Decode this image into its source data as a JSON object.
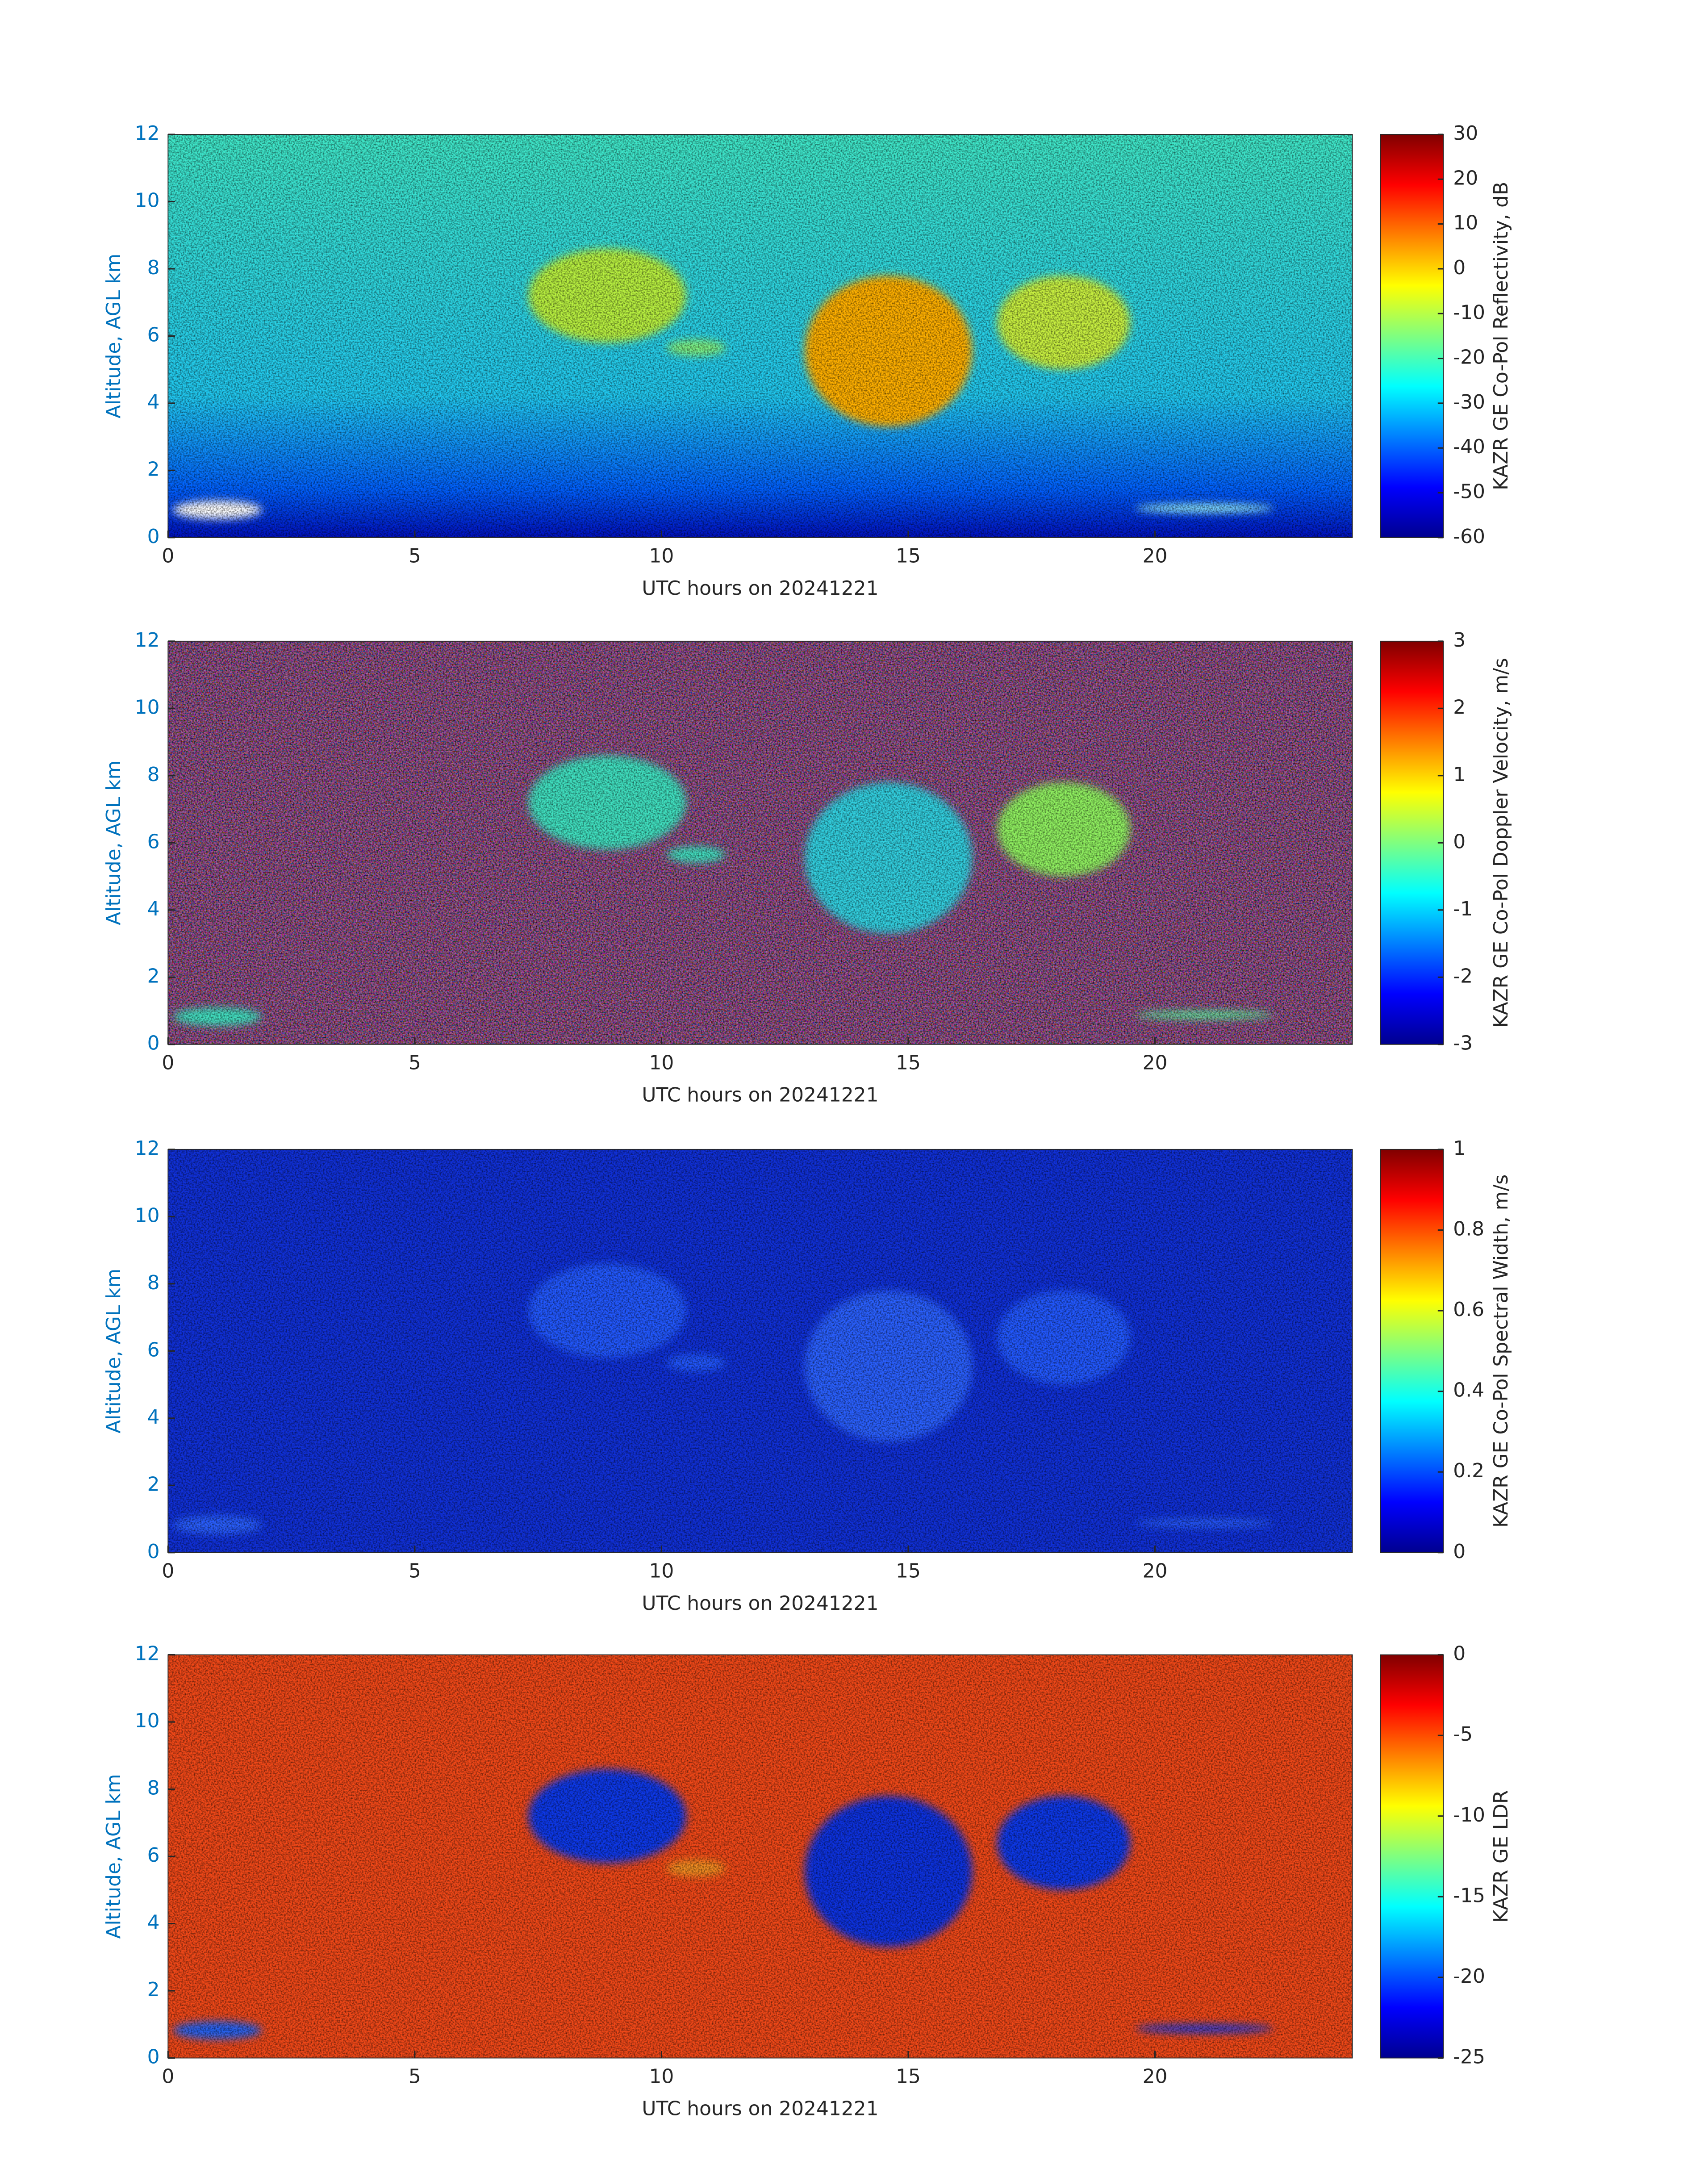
{
  "chart_data": [
    {
      "type": "heatmap",
      "colormap": "jet",
      "xlabel": "UTC hours on 20241221",
      "ylabel": "Altitude, AGL km",
      "xlim": [
        0,
        24
      ],
      "xticks": [
        0,
        5,
        10,
        15,
        20
      ],
      "ylim": [
        0,
        12
      ],
      "yticks": [
        0,
        2,
        4,
        6,
        8,
        10,
        12
      ],
      "clabel": "KAZR GE Co-Pol Reflectivity, dB",
      "clim": [
        -60,
        30
      ],
      "cticks": [
        -60,
        -50,
        -40,
        -30,
        -20,
        -10,
        0,
        10,
        20,
        30
      ]
    },
    {
      "type": "heatmap",
      "colormap": "jet",
      "xlabel": "UTC hours on 20241221",
      "ylabel": "Altitude, AGL km",
      "xlim": [
        0,
        24
      ],
      "xticks": [
        0,
        5,
        10,
        15,
        20
      ],
      "ylim": [
        0,
        12
      ],
      "yticks": [
        0,
        2,
        4,
        6,
        8,
        10,
        12
      ],
      "clabel": "KAZR GE Co-Pol Doppler Velocity, m/s",
      "clim": [
        -3,
        3
      ],
      "cticks": [
        -3,
        -2,
        -1,
        0,
        1,
        2,
        3
      ]
    },
    {
      "type": "heatmap",
      "colormap": "jet",
      "xlabel": "UTC hours on 20241221",
      "ylabel": "Altitude, AGL km",
      "xlim": [
        0,
        24
      ],
      "xticks": [
        0,
        5,
        10,
        15,
        20
      ],
      "ylim": [
        0,
        12
      ],
      "yticks": [
        0,
        2,
        4,
        6,
        8,
        10,
        12
      ],
      "clabel": "KAZR GE Co-Pol Spectral Width, m/s",
      "clim": [
        0,
        1
      ],
      "cticks": [
        0,
        0.2,
        0.4,
        0.6,
        0.8,
        1
      ]
    },
    {
      "type": "heatmap",
      "colormap": "jet",
      "xlabel": "UTC hours on 20241221",
      "ylabel": "Altitude, AGL km",
      "xlim": [
        0,
        24
      ],
      "xticks": [
        0,
        5,
        10,
        15,
        20
      ],
      "ylim": [
        0,
        12
      ],
      "yticks": [
        0,
        2,
        4,
        6,
        8,
        10,
        12
      ],
      "clabel": "KAZR GE LDR",
      "clim": [
        -25,
        0
      ],
      "cticks": [
        -25,
        -20,
        -15,
        -10,
        -5,
        0
      ]
    }
  ]
}
